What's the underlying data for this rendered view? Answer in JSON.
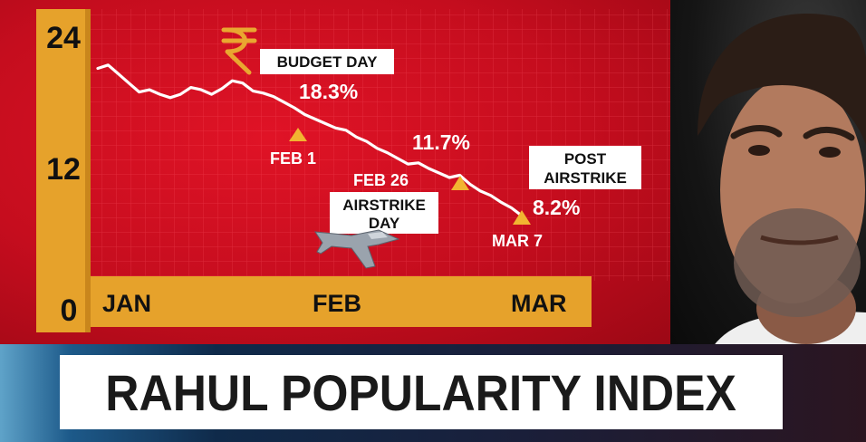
{
  "title": "RAHUL POPULARITY INDEX",
  "chart_data": {
    "type": "line",
    "yticks": [
      "24",
      "12",
      "0"
    ],
    "ylim": [
      0,
      24
    ],
    "xticks": [
      "JAN",
      "FEB",
      "MAR"
    ],
    "series": [
      {
        "values": [
          21.3,
          21.6,
          20.8,
          20.0,
          19.2,
          19.4,
          19.0,
          18.7,
          19.0,
          19.6,
          19.4,
          19.0,
          19.5,
          20.2,
          20.0,
          19.3,
          19.1,
          18.8,
          18.3,
          17.8,
          17.2,
          16.8,
          16.4,
          16.0,
          15.8,
          15.2,
          14.8,
          14.2,
          13.8,
          13.3,
          12.8,
          12.9,
          12.4,
          12.0,
          11.6,
          11.8,
          11.0,
          10.4,
          10.0,
          9.4,
          8.9,
          8.2
        ]
      }
    ],
    "annotations": {
      "budget_day": {
        "label": "BUDGET DAY",
        "value_text": "18.3%",
        "date": "FEB 1",
        "icon": "rupee-icon"
      },
      "airstrike_day": {
        "label_line1": "AIRSTRIKE",
        "label_line2": "DAY",
        "value_text": "11.7%",
        "date": "FEB 26",
        "icon": "fighter-jet-icon"
      },
      "post_airstrike": {
        "label_line1": "POST",
        "label_line2": "AIRSTRIKE",
        "value_text": "8.2%",
        "date": "MAR 7"
      }
    }
  },
  "colors": {
    "panel_red": "#d10f22",
    "axis_gold": "#e7a42c",
    "line": "#ffffff",
    "marker": "#f2b531"
  }
}
